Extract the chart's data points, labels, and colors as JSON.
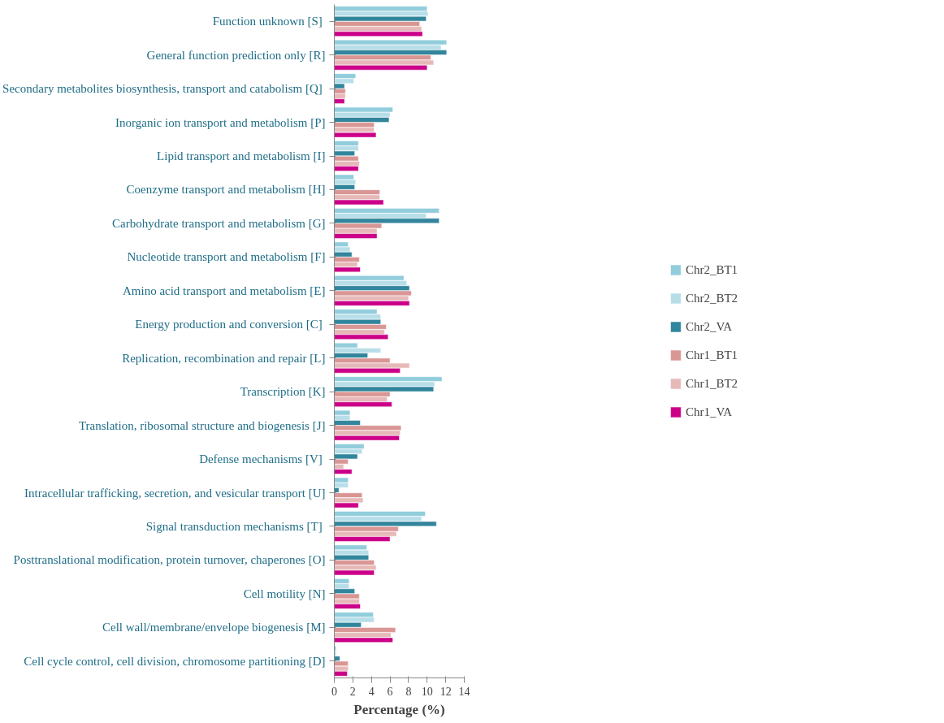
{
  "chart_data": {
    "type": "bar",
    "orientation": "horizontal",
    "xlabel": "Percentage (%)",
    "categories": [
      "Function unknown  [S]",
      "General function prediction only [R]",
      "Secondary metabolites biosynthesis, transport and  catabolism [Q]",
      "Inorganic ion transport and metabolism [P]",
      "Lipid transport and metabolism [I]",
      "Coenzyme transport and metabolism [H]",
      "Carbohydrate transport and metabolism [G]",
      "Nucleotide transport and metabolism [F]",
      "Amino acid transport and metabolism [E]",
      "Energy production and  conversion [C]",
      "Replication, recombination and repair [L]",
      "Transcription [K]",
      "Translation, ribosomal structure and biogenesis [J]",
      "Defense mechanisms  [V]",
      "Intracellular trafficking, secretion, and vesicular transport [U]",
      "Signal transduction mechanisms  [T]",
      "Posttranslational modification, protein turnover, chaperones [O]",
      "Cell motility [N]",
      "Cell wall/membrane/envelope biogenesis [M]",
      "Cell cycle control, cell division, chromosome partitioning [D]"
    ],
    "series": [
      {
        "name": "Chr2_BT1",
        "color": "#92cddc",
        "values": [
          10.0,
          12.1,
          2.3,
          6.3,
          2.6,
          2.1,
          11.3,
          1.5,
          7.5,
          4.6,
          2.5,
          11.6,
          1.7,
          3.2,
          1.5,
          9.8,
          3.5,
          1.6,
          4.2,
          0.2
        ]
      },
      {
        "name": "Chr2_BT2",
        "color": "#b7dee8",
        "values": [
          10.1,
          11.5,
          2.1,
          6.0,
          2.6,
          2.3,
          9.9,
          1.7,
          7.8,
          5.0,
          5.0,
          10.8,
          1.7,
          3.0,
          1.5,
          9.4,
          3.7,
          1.6,
          4.3,
          0.2
        ]
      },
      {
        "name": "Chr2_VA",
        "color": "#31859c",
        "values": [
          9.9,
          12.1,
          1.1,
          5.9,
          2.2,
          2.2,
          11.3,
          1.9,
          8.1,
          5.0,
          3.6,
          10.7,
          2.8,
          2.5,
          0.5,
          11.0,
          3.7,
          2.2,
          2.9,
          0.6
        ]
      },
      {
        "name": "Chr1_BT1",
        "color": "#d99694",
        "values": [
          9.2,
          10.4,
          1.2,
          4.3,
          2.6,
          4.9,
          5.1,
          2.7,
          8.3,
          5.6,
          6.0,
          6.0,
          7.2,
          1.5,
          3.0,
          6.9,
          4.3,
          2.7,
          6.6,
          1.5
        ]
      },
      {
        "name": "Chr1_BT2",
        "color": "#e6b9b8",
        "values": [
          9.4,
          10.7,
          1.2,
          4.3,
          2.7,
          4.9,
          4.6,
          2.5,
          8.0,
          5.4,
          8.1,
          5.7,
          7.1,
          1.0,
          3.1,
          6.7,
          4.5,
          2.7,
          6.1,
          1.5
        ]
      },
      {
        "name": "Chr1_VA",
        "color": "#cc0088",
        "values": [
          9.5,
          10.0,
          1.1,
          4.5,
          2.6,
          5.3,
          4.6,
          2.8,
          8.1,
          5.8,
          7.1,
          6.2,
          7.0,
          1.9,
          2.6,
          6.0,
          4.3,
          2.8,
          6.3,
          1.4
        ]
      }
    ],
    "xlim": [
      0,
      14
    ],
    "xticks": [
      0,
      2,
      4,
      6,
      8,
      10,
      12,
      14
    ],
    "grid": false,
    "legend": "right"
  }
}
